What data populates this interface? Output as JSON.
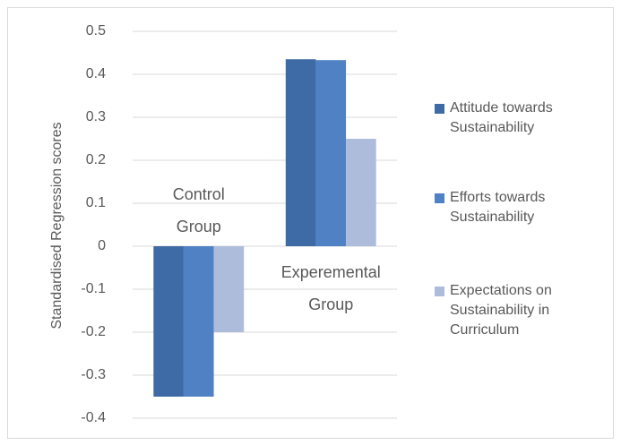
{
  "chart_data": {
    "type": "bar",
    "y_label": "Standardised Regression scores",
    "categories": [
      "Control Group",
      "Experemental Group"
    ],
    "series": [
      {
        "name": "Attitude towards Sustainability",
        "color": "#3e6aa5",
        "values": [
          -0.35,
          0.435
        ]
      },
      {
        "name": "Efforts towards Sustainability",
        "color": "#4f81c4",
        "values": [
          -0.35,
          0.433
        ]
      },
      {
        "name": "Expectations on Sustainability in Curriculum",
        "color": "#adbcdb",
        "values": [
          -0.2,
          0.25
        ]
      }
    ],
    "ylim": [
      -0.4,
      0.5
    ],
    "yticks": [
      -0.4,
      -0.3,
      -0.2,
      -0.1,
      0,
      0.1,
      0.2,
      0.3,
      0.4,
      0.5
    ],
    "grid": true,
    "legend": "right"
  }
}
